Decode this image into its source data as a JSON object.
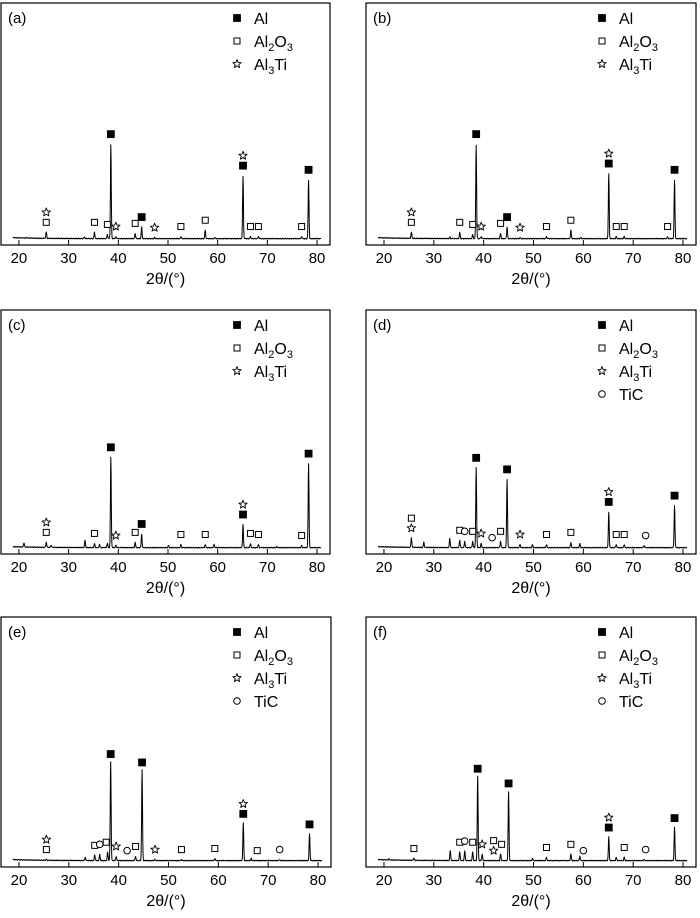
{
  "xlabel": "2θ/(°)",
  "legend_entries": {
    "al": {
      "name": "Al",
      "marker": "filled-square"
    },
    "al2o3": {
      "name": "Al2O3",
      "base": "Al",
      "sub1": "2",
      "mid": "O",
      "sub2": "3",
      "marker": "open-square"
    },
    "al3ti": {
      "name": "Al3Ti",
      "base": "Al",
      "sub1": "3",
      "mid": "Ti",
      "marker": "star"
    },
    "tic": {
      "name": "TiC",
      "marker": "open-circle"
    }
  },
  "chart_data": [
    {
      "type": "line",
      "label": "(a)",
      "xlim": [
        18,
        81
      ],
      "ylim": [
        0,
        100
      ],
      "xticks": [
        20,
        30,
        40,
        50,
        60,
        70,
        80
      ],
      "legend": [
        "al",
        "al2o3",
        "al3ti"
      ],
      "peaks": [
        [
          21.5,
          0.5
        ],
        [
          25.5,
          6
        ],
        [
          33.2,
          1.5
        ],
        [
          35.2,
          6
        ],
        [
          37.8,
          4
        ],
        [
          38.5,
          90
        ],
        [
          39.5,
          2
        ],
        [
          43.4,
          5
        ],
        [
          44.7,
          11
        ],
        [
          47.3,
          1
        ],
        [
          52.6,
          2
        ],
        [
          57.5,
          8
        ],
        [
          59.5,
          1
        ],
        [
          65.1,
          60
        ],
        [
          66.6,
          2
        ],
        [
          68.2,
          2
        ],
        [
          76.9,
          2
        ],
        [
          78.3,
          56
        ]
      ],
      "markers": [
        {
          "x": 25.5,
          "stack": [
            "al2o3",
            "al3ti"
          ]
        },
        {
          "x": 35.2,
          "stack": [
            "al2o3"
          ]
        },
        {
          "x": 37.8,
          "stack": [
            "al2o3"
          ]
        },
        {
          "x": 38.5,
          "stack": [
            "al"
          ]
        },
        {
          "x": 39.5,
          "stack": [
            "al3ti"
          ]
        },
        {
          "x": 43.4,
          "stack": [
            "al2o3"
          ]
        },
        {
          "x": 44.7,
          "stack": [
            "al"
          ]
        },
        {
          "x": 47.3,
          "stack": [
            "al3ti"
          ]
        },
        {
          "x": 52.6,
          "stack": [
            "al2o3"
          ]
        },
        {
          "x": 57.5,
          "stack": [
            "al2o3"
          ]
        },
        {
          "x": 65.1,
          "stack": [
            "al",
            "al3ti"
          ]
        },
        {
          "x": 66.6,
          "stack": [
            "al2o3"
          ]
        },
        {
          "x": 68.2,
          "stack": [
            "al2o3"
          ]
        },
        {
          "x": 76.9,
          "stack": [
            "al2o3"
          ]
        },
        {
          "x": 78.3,
          "stack": [
            "al"
          ]
        }
      ]
    },
    {
      "type": "line",
      "label": "(b)",
      "xlim": [
        18,
        81
      ],
      "ylim": [
        0,
        100
      ],
      "xticks": [
        20,
        30,
        40,
        50,
        60,
        70,
        80
      ],
      "legend": [
        "al",
        "al2o3",
        "al3ti"
      ],
      "peaks": [
        [
          25.5,
          6
        ],
        [
          33.2,
          1.5
        ],
        [
          35.2,
          6
        ],
        [
          37.8,
          4
        ],
        [
          38.5,
          90
        ],
        [
          39.5,
          2
        ],
        [
          43.4,
          5
        ],
        [
          44.7,
          11
        ],
        [
          47.3,
          1
        ],
        [
          52.6,
          2
        ],
        [
          57.5,
          8
        ],
        [
          59.5,
          1
        ],
        [
          65.1,
          62
        ],
        [
          66.6,
          2
        ],
        [
          68.2,
          2
        ],
        [
          76.9,
          2
        ],
        [
          78.3,
          56
        ]
      ],
      "markers": [
        {
          "x": 25.5,
          "stack": [
            "al2o3",
            "al3ti"
          ]
        },
        {
          "x": 35.2,
          "stack": [
            "al2o3"
          ]
        },
        {
          "x": 37.8,
          "stack": [
            "al2o3"
          ]
        },
        {
          "x": 38.5,
          "stack": [
            "al"
          ]
        },
        {
          "x": 39.5,
          "stack": [
            "al3ti"
          ]
        },
        {
          "x": 43.4,
          "stack": [
            "al2o3"
          ]
        },
        {
          "x": 44.7,
          "stack": [
            "al"
          ]
        },
        {
          "x": 47.3,
          "stack": [
            "al3ti"
          ]
        },
        {
          "x": 52.6,
          "stack": [
            "al2o3"
          ]
        },
        {
          "x": 57.5,
          "stack": [
            "al2o3"
          ]
        },
        {
          "x": 65.1,
          "stack": [
            "al",
            "al3ti"
          ]
        },
        {
          "x": 66.6,
          "stack": [
            "al2o3"
          ]
        },
        {
          "x": 68.2,
          "stack": [
            "al2o3"
          ]
        },
        {
          "x": 76.9,
          "stack": [
            "al2o3"
          ]
        },
        {
          "x": 78.3,
          "stack": [
            "al"
          ]
        }
      ]
    },
    {
      "type": "line",
      "label": "(c)",
      "xlim": [
        18,
        81
      ],
      "ylim": [
        0,
        100
      ],
      "xticks": [
        20,
        30,
        40,
        50,
        60,
        70,
        80
      ],
      "legend": [
        "al",
        "al2o3",
        "al3ti"
      ],
      "peaks": [
        [
          21,
          4
        ],
        [
          25.5,
          5
        ],
        [
          26.5,
          2
        ],
        [
          33.3,
          7
        ],
        [
          35.2,
          4
        ],
        [
          36.2,
          3
        ],
        [
          37.8,
          4
        ],
        [
          38.5,
          86
        ],
        [
          39.5,
          2
        ],
        [
          43.4,
          5
        ],
        [
          44.7,
          13
        ],
        [
          50.1,
          2
        ],
        [
          52.6,
          3
        ],
        [
          57.5,
          3
        ],
        [
          59.3,
          3
        ],
        [
          65.1,
          22
        ],
        [
          66.6,
          4
        ],
        [
          68.2,
          3
        ],
        [
          71.9,
          1
        ],
        [
          76.9,
          2
        ],
        [
          78.3,
          80
        ]
      ],
      "markers": [
        {
          "x": 25.5,
          "stack": [
            "al2o3",
            "al3ti"
          ]
        },
        {
          "x": 35.2,
          "stack": [
            "al2o3"
          ]
        },
        {
          "x": 38.5,
          "stack": [
            "al"
          ]
        },
        {
          "x": 39.5,
          "stack": [
            "al3ti"
          ]
        },
        {
          "x": 43.4,
          "stack": [
            "al2o3"
          ]
        },
        {
          "x": 44.7,
          "stack": [
            "al"
          ]
        },
        {
          "x": 52.6,
          "stack": [
            "al2o3"
          ]
        },
        {
          "x": 57.5,
          "stack": [
            "al2o3"
          ]
        },
        {
          "x": 65.1,
          "stack": [
            "al",
            "al3ti"
          ]
        },
        {
          "x": 66.6,
          "stack": [
            "al2o3"
          ]
        },
        {
          "x": 68.2,
          "stack": [
            "al2o3"
          ]
        },
        {
          "x": 76.9,
          "stack": [
            "al2o3"
          ]
        },
        {
          "x": 78.3,
          "stack": [
            "al"
          ]
        }
      ]
    },
    {
      "type": "line",
      "label": "(d)",
      "xlim": [
        18,
        81
      ],
      "ylim": [
        0,
        100
      ],
      "xticks": [
        20,
        30,
        40,
        50,
        60,
        70,
        80
      ],
      "legend": [
        "al",
        "al2o3",
        "al3ti",
        "tic"
      ],
      "peaks": [
        [
          25.5,
          9
        ],
        [
          28,
          5
        ],
        [
          33.2,
          9
        ],
        [
          35.2,
          7
        ],
        [
          36.2,
          6
        ],
        [
          37.8,
          6
        ],
        [
          38.5,
          76
        ],
        [
          39.5,
          4
        ],
        [
          43.4,
          6
        ],
        [
          44.7,
          65
        ],
        [
          47.3,
          3
        ],
        [
          49.8,
          3
        ],
        [
          52.6,
          3
        ],
        [
          57.5,
          5
        ],
        [
          59.3,
          4
        ],
        [
          65.1,
          34
        ],
        [
          66.6,
          3
        ],
        [
          68.2,
          3
        ],
        [
          72.2,
          2
        ],
        [
          78.3,
          40
        ]
      ],
      "markers": [
        {
          "x": 25.5,
          "stack": [
            "al3ti",
            "al2o3"
          ]
        },
        {
          "x": 35.2,
          "stack": [
            "al2o3"
          ]
        },
        {
          "x": 36.2,
          "stack": [
            "tic"
          ]
        },
        {
          "x": 37.8,
          "stack": [
            "al2o3"
          ]
        },
        {
          "x": 38.5,
          "stack": [
            "al"
          ]
        },
        {
          "x": 39.5,
          "stack": [
            "al3ti"
          ]
        },
        {
          "x": 41.7,
          "stack": [
            "tic"
          ]
        },
        {
          "x": 43.4,
          "stack": [
            "al2o3"
          ]
        },
        {
          "x": 44.7,
          "stack": [
            "al"
          ]
        },
        {
          "x": 47.3,
          "stack": [
            "al3ti"
          ]
        },
        {
          "x": 52.6,
          "stack": [
            "al2o3"
          ]
        },
        {
          "x": 57.5,
          "stack": [
            "al2o3"
          ]
        },
        {
          "x": 65.1,
          "stack": [
            "al",
            "al3ti"
          ]
        },
        {
          "x": 66.6,
          "stack": [
            "al2o3"
          ]
        },
        {
          "x": 68.2,
          "stack": [
            "al2o3"
          ]
        },
        {
          "x": 72.5,
          "stack": [
            "tic"
          ]
        },
        {
          "x": 78.3,
          "stack": [
            "al"
          ]
        }
      ]
    },
    {
      "type": "line",
      "label": "(e)",
      "xlim": [
        18,
        81
      ],
      "ylim": [
        0,
        100
      ],
      "xticks": [
        20,
        30,
        40,
        50,
        60,
        70,
        80
      ],
      "legend": [
        "al",
        "al2o3",
        "al3ti",
        "tic"
      ],
      "peaks": [
        [
          25.5,
          1
        ],
        [
          33.3,
          3
        ],
        [
          35.2,
          5
        ],
        [
          36.2,
          6
        ],
        [
          37.8,
          8
        ],
        [
          38.4,
          92
        ],
        [
          39.5,
          4
        ],
        [
          43.4,
          4
        ],
        [
          44.7,
          84
        ],
        [
          47.3,
          1
        ],
        [
          52.6,
          1
        ],
        [
          59.3,
          2
        ],
        [
          65,
          35
        ],
        [
          66.6,
          2
        ],
        [
          72.3,
          1
        ],
        [
          78.3,
          25
        ]
      ],
      "markers": [
        {
          "x": 25.5,
          "stack": [
            "al2o3",
            "al3ti"
          ]
        },
        {
          "x": 35.2,
          "stack": [
            "al2o3"
          ]
        },
        {
          "x": 36.2,
          "stack": [
            "tic"
          ]
        },
        {
          "x": 37.5,
          "stack": [
            "al2o3"
          ]
        },
        {
          "x": 38.4,
          "stack": [
            "al"
          ]
        },
        {
          "x": 39.5,
          "stack": [
            "al3ti"
          ]
        },
        {
          "x": 41.7,
          "stack": [
            "tic"
          ]
        },
        {
          "x": 43.4,
          "stack": [
            "al2o3"
          ]
        },
        {
          "x": 44.7,
          "stack": [
            "al"
          ]
        },
        {
          "x": 47.3,
          "stack": [
            "al3ti"
          ]
        },
        {
          "x": 52.6,
          "stack": [
            "al2o3"
          ]
        },
        {
          "x": 59.3,
          "stack": [
            "al2o3"
          ]
        },
        {
          "x": 65,
          "stack": [
            "al",
            "al3ti"
          ]
        },
        {
          "x": 67.8,
          "stack": [
            "al2o3"
          ]
        },
        {
          "x": 72.3,
          "stack": [
            "tic"
          ]
        },
        {
          "x": 78.3,
          "stack": [
            "al"
          ]
        }
      ]
    },
    {
      "type": "line",
      "label": "(f)",
      "xlim": [
        18,
        81
      ],
      "ylim": [
        0,
        100
      ],
      "xticks": [
        20,
        30,
        40,
        50,
        60,
        70,
        80
      ],
      "legend": [
        "al",
        "al2o3",
        "al3ti",
        "tic"
      ],
      "peaks": [
        [
          21,
          1
        ],
        [
          26,
          2
        ],
        [
          33.3,
          9
        ],
        [
          35.2,
          8
        ],
        [
          36.2,
          9
        ],
        [
          37.8,
          8
        ],
        [
          38.8,
          78
        ],
        [
          39.7,
          6
        ],
        [
          43.4,
          6
        ],
        [
          45,
          64
        ],
        [
          49.8,
          2
        ],
        [
          52.6,
          3
        ],
        [
          57.5,
          6
        ],
        [
          59.3,
          4
        ],
        [
          65.1,
          22
        ],
        [
          66.6,
          3
        ],
        [
          68.2,
          3
        ],
        [
          72.2,
          1
        ],
        [
          78.3,
          31
        ]
      ],
      "markers": [
        {
          "x": 26,
          "stack": [
            "al2o3"
          ]
        },
        {
          "x": 35.2,
          "stack": [
            "al2o3"
          ]
        },
        {
          "x": 36.2,
          "stack": [
            "tic"
          ]
        },
        {
          "x": 37.8,
          "stack": [
            "al2o3"
          ]
        },
        {
          "x": 38.8,
          "stack": [
            "al"
          ]
        },
        {
          "x": 39.7,
          "stack": [
            "al3ti"
          ]
        },
        {
          "x": 42,
          "stack": [
            "al3ti",
            "al2o3"
          ]
        },
        {
          "x": 43.6,
          "stack": [
            "al2o3"
          ]
        },
        {
          "x": 45,
          "stack": [
            "al"
          ]
        },
        {
          "x": 52.6,
          "stack": [
            "al2o3"
          ]
        },
        {
          "x": 57.5,
          "stack": [
            "al2o3"
          ]
        },
        {
          "x": 60,
          "stack": [
            "tic"
          ]
        },
        {
          "x": 65.1,
          "stack": [
            "al",
            "al3ti"
          ]
        },
        {
          "x": 68.2,
          "stack": [
            "al2o3"
          ]
        },
        {
          "x": 72.5,
          "stack": [
            "tic"
          ]
        },
        {
          "x": 78.3,
          "stack": [
            "al"
          ]
        }
      ]
    }
  ]
}
